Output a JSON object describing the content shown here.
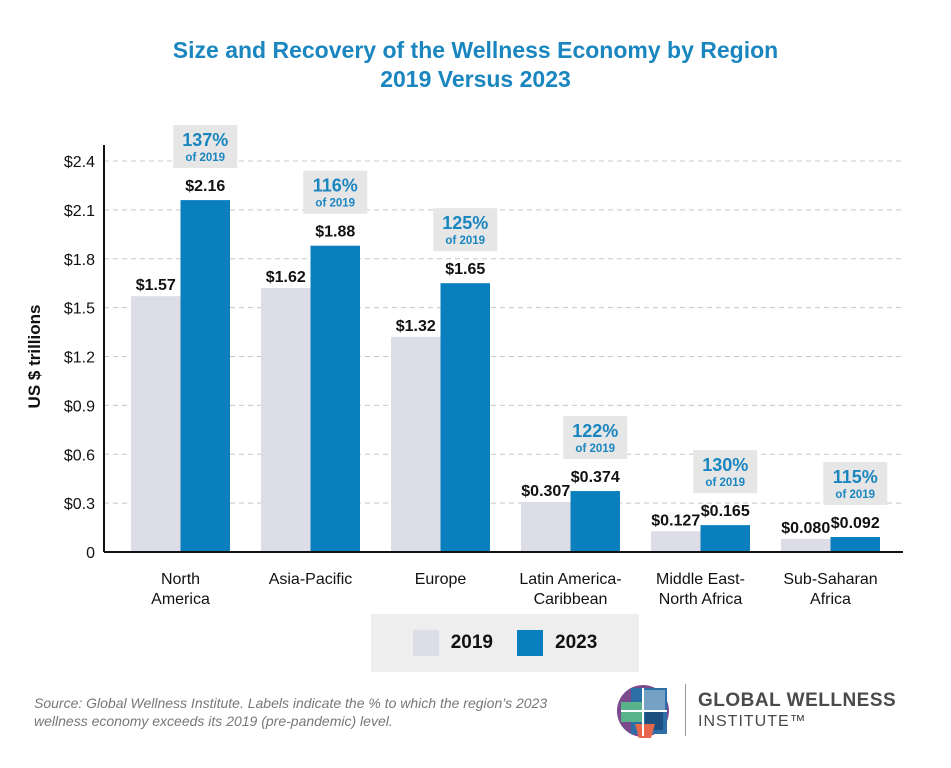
{
  "chart_data": {
    "type": "bar",
    "title": "Size and Recovery of the Wellness Economy by Region",
    "subtitle": "2019 Versus 2023",
    "xlabel": "",
    "ylabel": "US $ trillions",
    "ylim": [
      0,
      2.4
    ],
    "yticks": [
      {
        "value": 0,
        "label": "0"
      },
      {
        "value": 0.3,
        "label": "$0.3"
      },
      {
        "value": 0.6,
        "label": "$0.6"
      },
      {
        "value": 0.9,
        "label": "$0.9"
      },
      {
        "value": 1.2,
        "label": "$1.2"
      },
      {
        "value": 1.5,
        "label": "$1.5"
      },
      {
        "value": 1.8,
        "label": "$1.8"
      },
      {
        "value": 2.1,
        "label": "$2.1"
      },
      {
        "value": 2.4,
        "label": "$2.4"
      }
    ],
    "grid": true,
    "categories": [
      [
        "North",
        "America"
      ],
      [
        "Asia-Pacific"
      ],
      [
        "Europe"
      ],
      [
        "Latin America-",
        "Caribbean"
      ],
      [
        "Middle East-",
        "North Africa"
      ],
      [
        "Sub-Saharan",
        "Africa"
      ]
    ],
    "series": [
      {
        "name": "2019",
        "color": "#dcdde6",
        "values": [
          1.57,
          1.62,
          1.32,
          0.307,
          0.127,
          0.08
        ],
        "labels": [
          "$1.57",
          "$1.62",
          "$1.32",
          "$0.307",
          "$0.127",
          "$0.080"
        ]
      },
      {
        "name": "2023",
        "color": "#0a7fbd",
        "values": [
          2.16,
          1.88,
          1.65,
          0.374,
          0.165,
          0.092
        ],
        "labels": [
          "$2.16",
          "$1.88",
          "$1.65",
          "$0.374",
          "$0.165",
          "$0.092"
        ]
      }
    ],
    "annotations": [
      {
        "pct": "137%",
        "sub": "of 2019"
      },
      {
        "pct": "116%",
        "sub": "of 2019"
      },
      {
        "pct": "125%",
        "sub": "of 2019"
      },
      {
        "pct": "122%",
        "sub": "of 2019"
      },
      {
        "pct": "130%",
        "sub": "of 2019"
      },
      {
        "pct": "115%",
        "sub": "of 2019"
      }
    ],
    "legend": {
      "position": "bottom-center",
      "items": [
        "2019",
        "2023"
      ]
    }
  },
  "source": "Source: Global Wellness Institute. Labels indicate the % to which the region’s 2023 wellness economy exceeds its 2019 (pre-pandemic) level.",
  "logo": {
    "line1": "GLOBAL WELLNESS",
    "line2": "INSTITUTE™"
  },
  "colors": {
    "title": "#1a86c0",
    "accent": "#0a7fbd",
    "bar2019": "#dcdde6",
    "annotationBox": "#e6e6e6"
  }
}
